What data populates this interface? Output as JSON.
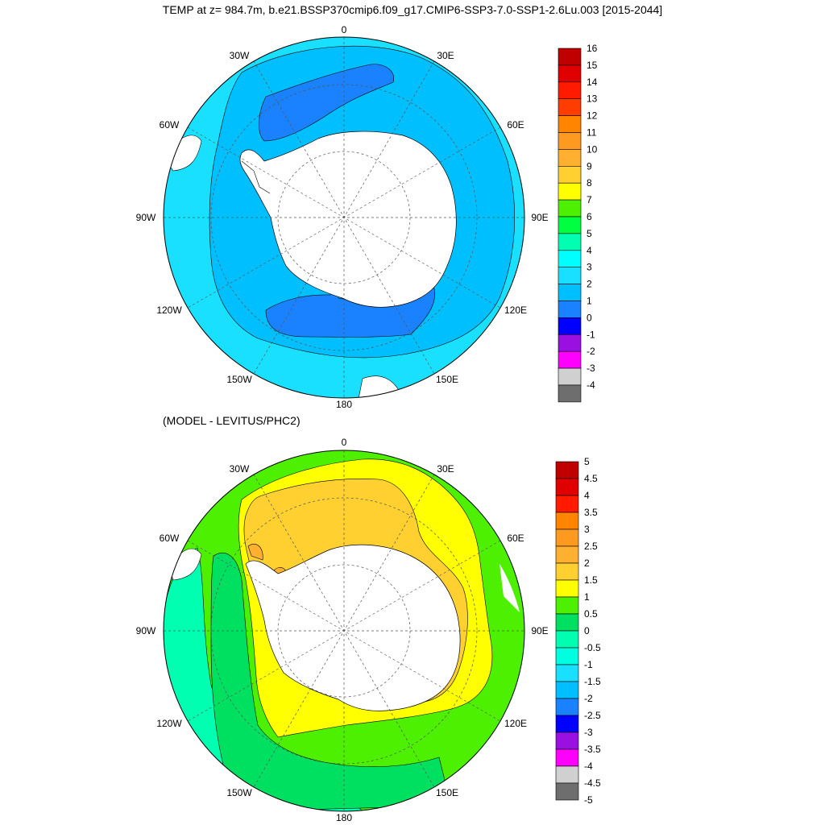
{
  "title": "TEMP at z= 984.7m, b.e21.BSSP370cmip6.f09_g17.CMIP6-SSP3-7.0-SSP1-2.6Lu.003 [2015-2044]",
  "subtitle": "(MODEL - LEVITUS/PHC2)",
  "lon_labels": [
    "0",
    "30E",
    "60E",
    "90E",
    "120E",
    "150E",
    "180",
    "150W",
    "120W",
    "90W",
    "60W",
    "30W"
  ],
  "top_colorbar": {
    "labels": [
      "16",
      "15",
      "14",
      "13",
      "12",
      "11",
      "10",
      "9",
      "8",
      "7",
      "6",
      "5",
      "4",
      "3",
      "2",
      "1",
      "0",
      "-1",
      "-2",
      "-3",
      "-4"
    ],
    "colors": [
      "#c00000",
      "#e00000",
      "#ff1a00",
      "#ff3d00",
      "#ff8400",
      "#ff9a20",
      "#ffb030",
      "#ffd030",
      "#ffff00",
      "#4df000",
      "#00ff40",
      "#00ffb0",
      "#00ffff",
      "#1ae0ff",
      "#00bfff",
      "#1a82ff",
      "#0000ff",
      "#9a10e0",
      "#ff00ff",
      "#d0d0d0",
      "#6e6e6e"
    ]
  },
  "bottom_colorbar": {
    "labels": [
      "5",
      "4.5",
      "4",
      "3.5",
      "3",
      "2.5",
      "2",
      "1.5",
      "1",
      "0.5",
      "0",
      "-0.5",
      "-1",
      "-1.5",
      "-2",
      "-2.5",
      "-3",
      "-3.5",
      "-4",
      "-4.5",
      "-5"
    ],
    "colors": [
      "#c00000",
      "#e00000",
      "#ff1a00",
      "#ff8400",
      "#ff9a20",
      "#ffb030",
      "#ffd030",
      "#ffff00",
      "#4df000",
      "#00e060",
      "#00ffb0",
      "#00ffe0",
      "#1ae0ff",
      "#00bfff",
      "#1a82ff",
      "#0000ff",
      "#9a10e0",
      "#ff00ff",
      "#d0d0d0",
      "#6e6e6e"
    ]
  }
}
